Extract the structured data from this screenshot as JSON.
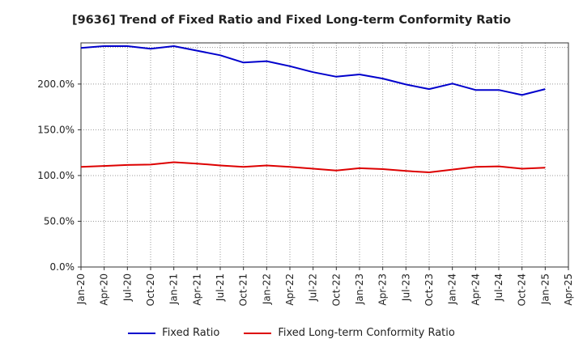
{
  "title": "[9636]  Trend of Fixed Ratio and Fixed Long-term Conformity Ratio",
  "chart_data": {
    "type": "line",
    "title": "[9636]  Trend of Fixed Ratio and Fixed Long-term Conformity Ratio",
    "x_ticks": [
      "Jan-20",
      "Apr-20",
      "Jul-20",
      "Oct-20",
      "Jan-21",
      "Apr-21",
      "Jul-21",
      "Oct-21",
      "Jan-22",
      "Apr-22",
      "Jul-22",
      "Oct-22",
      "Jan-23",
      "Apr-23",
      "Jul-23",
      "Oct-23",
      "Jan-24",
      "Apr-24",
      "Jul-24",
      "Oct-24",
      "Jan-25",
      "Apr-25"
    ],
    "y_ticks": [
      "0.0%",
      "50.0%",
      "100.0%",
      "150.0%",
      "200.0%"
    ],
    "ylim": [
      0,
      245
    ],
    "grid": true,
    "legend_position": "bottom",
    "categories": [
      "Jan-20",
      "Apr-20",
      "Jul-20",
      "Oct-20",
      "Jan-21",
      "Apr-21",
      "Jul-21",
      "Oct-21",
      "Jan-22",
      "Apr-22",
      "Jul-22",
      "Oct-22",
      "Jan-23",
      "Apr-23",
      "Jul-23",
      "Oct-23",
      "Jan-24",
      "Apr-24",
      "Jul-24",
      "Oct-24",
      "Jan-25"
    ],
    "series": [
      {
        "name": "Fixed Ratio",
        "color": "#0000cc",
        "values": [
          239.5,
          241.5,
          241.5,
          238.5,
          241.5,
          236.5,
          231.5,
          223.5,
          225.0,
          219.5,
          213.0,
          208.0,
          210.5,
          206.0,
          199.5,
          194.5,
          200.5,
          193.5,
          193.5,
          188.0,
          194.5
        ]
      },
      {
        "name": "Fixed Long-term Conformity Ratio",
        "color": "#dd0000",
        "values": [
          109.5,
          110.5,
          111.5,
          112.0,
          114.5,
          113.0,
          111.0,
          109.5,
          111.0,
          109.5,
          107.5,
          105.5,
          108.0,
          107.0,
          105.0,
          103.5,
          106.5,
          109.5,
          110.0,
          107.5,
          108.5
        ]
      }
    ]
  }
}
